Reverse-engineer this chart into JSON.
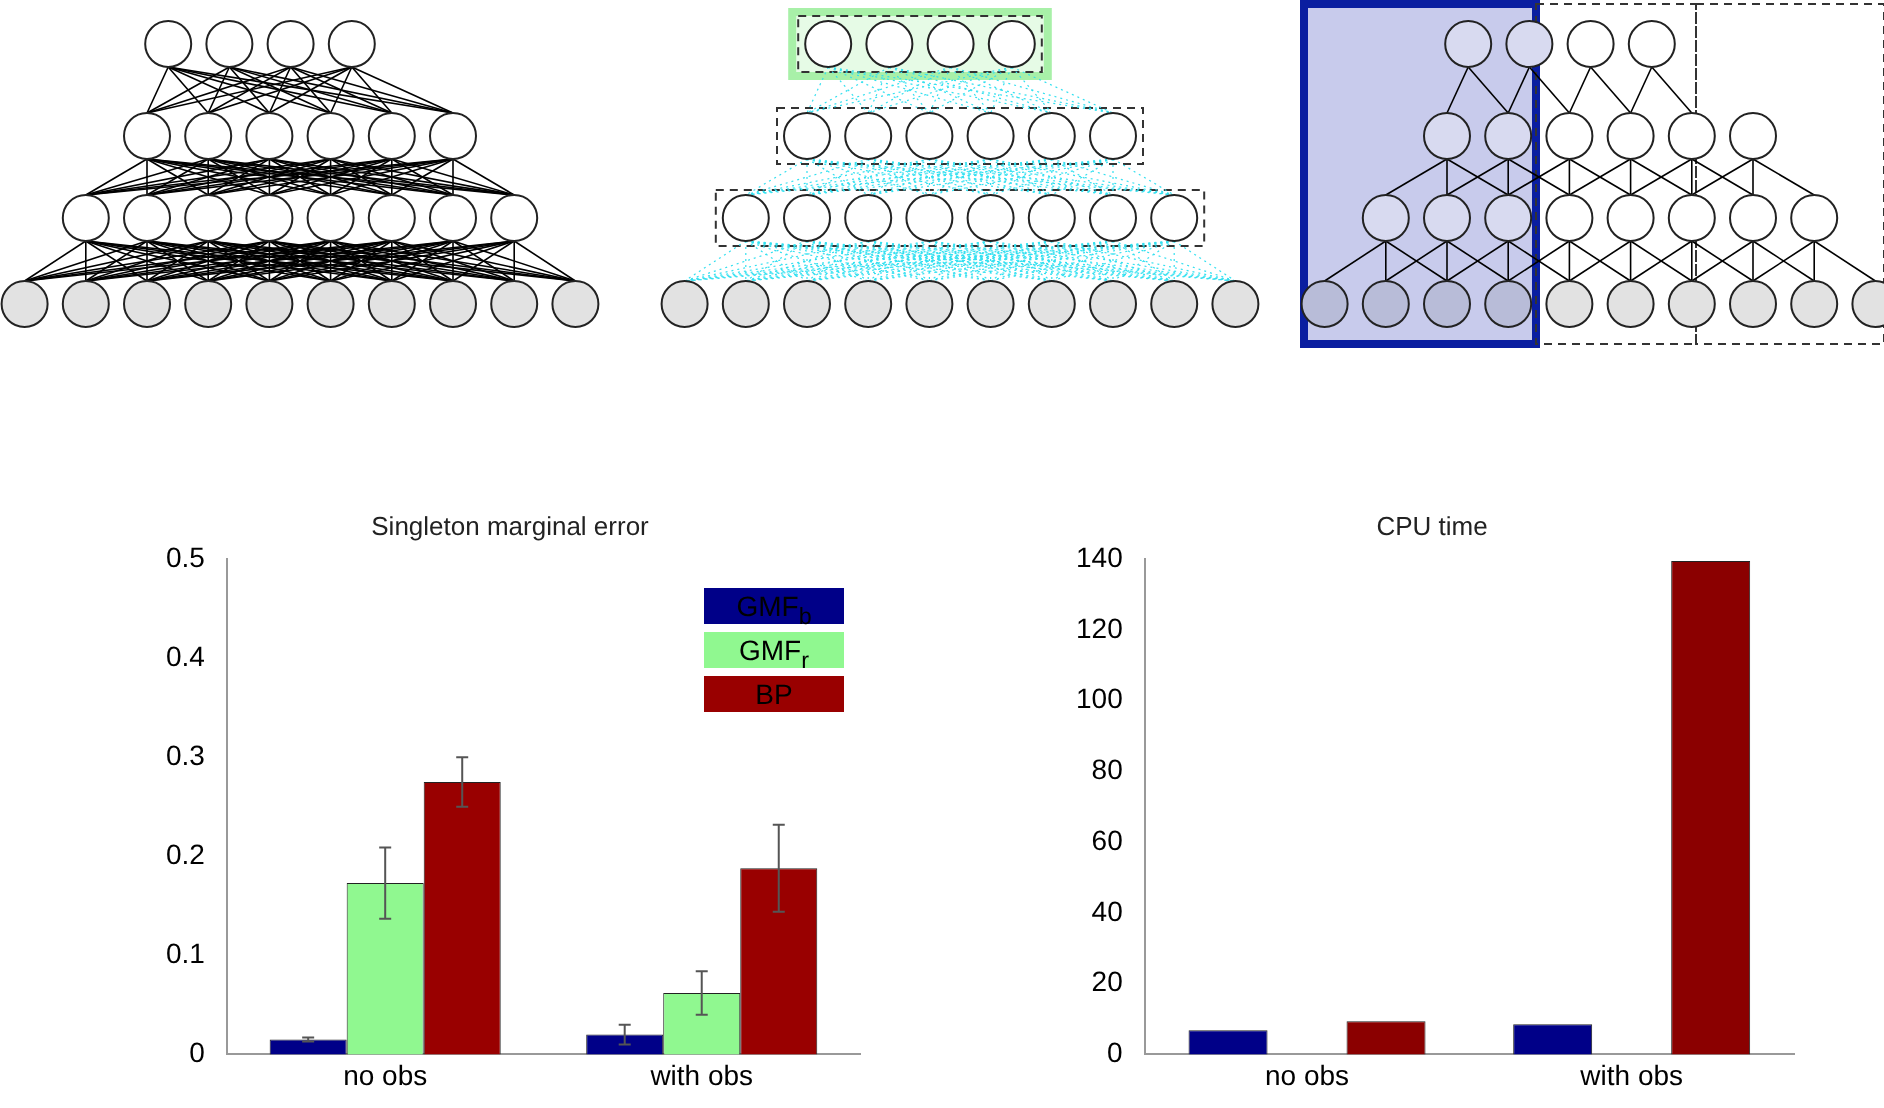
{
  "chart_data": [
    {
      "type": "bar",
      "title": "Singleton marginal error",
      "categories": [
        "no obs",
        "with obs"
      ],
      "series": [
        {
          "name": "GMF$_{b}$",
          "color": "#000088",
          "values": [
            0.015,
            0.02
          ],
          "errors": [
            0.002,
            0.01
          ]
        },
        {
          "name": "GMF$_{r}$",
          "color": "#90f890",
          "values": [
            0.173,
            0.062
          ],
          "errors": [
            0.036,
            0.022
          ]
        },
        {
          "name": "BP",
          "color": "#990000",
          "values": [
            0.275,
            0.188
          ],
          "errors": [
            0.025,
            0.044
          ]
        }
      ],
      "ylim": [
        0,
        0.5
      ],
      "yticks": [
        0,
        0.1,
        0.2,
        0.3,
        0.4,
        0.5
      ],
      "grid": false,
      "legend": "top right"
    },
    {
      "type": "bar",
      "title": "CPU time",
      "categories": [
        "no obs",
        "with obs"
      ],
      "series": [
        {
          "color": "#000088",
          "values": [
            6.8,
            8.5
          ]
        },
        {
          "color": "#90f890",
          "values": [
            null,
            null
          ]
        },
        {
          "color": "#8b0000",
          "values": [
            9.4,
            139.5
          ]
        }
      ],
      "ylim": [
        0,
        140
      ],
      "yticks": [
        0,
        20,
        40,
        60,
        80,
        100,
        120,
        140
      ],
      "grid": false
    }
  ]
}
